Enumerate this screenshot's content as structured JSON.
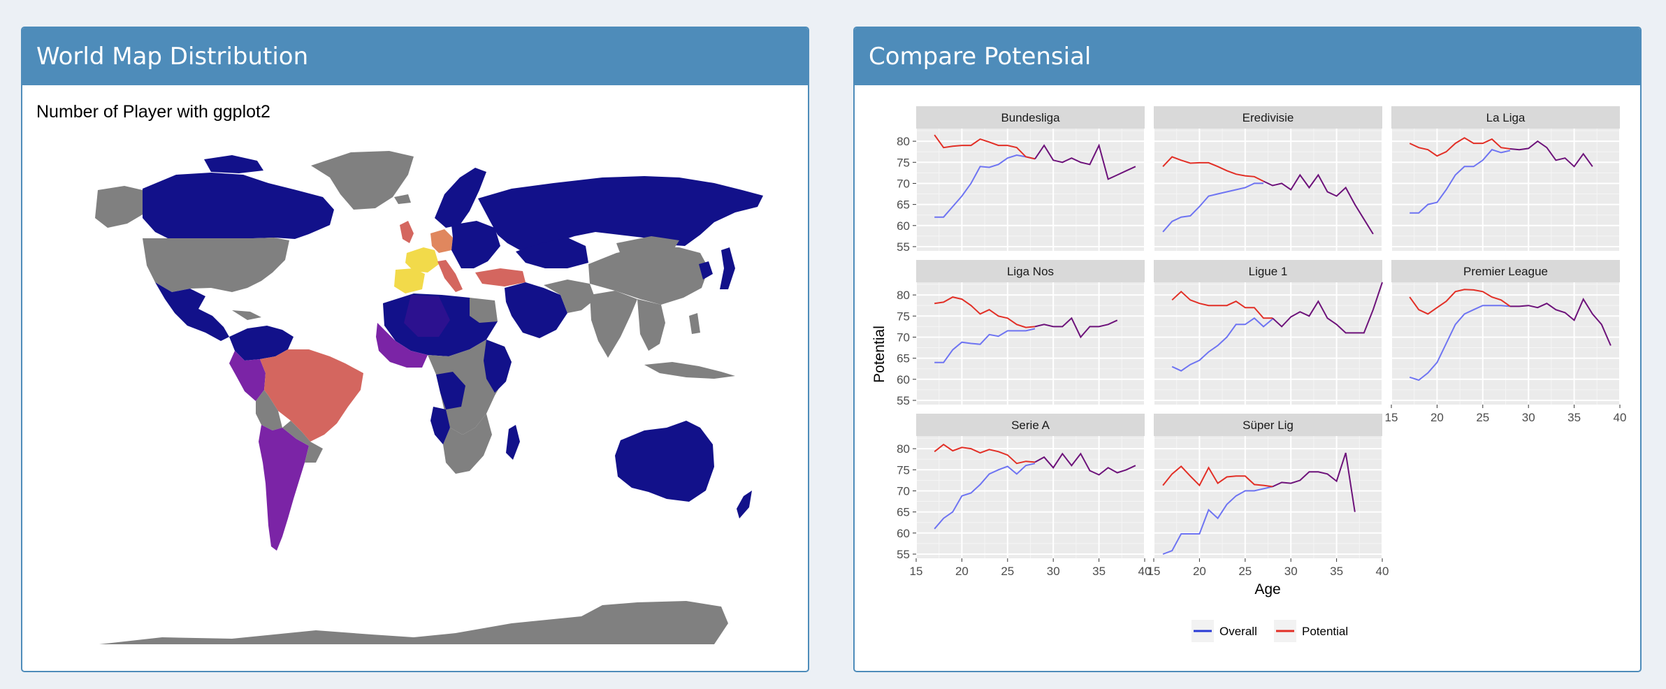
{
  "map_box": {
    "title": "World Map Distribution",
    "subtitle": "Number of Player with ggplot2",
    "colors": {
      "few": "#12118a",
      "mid": "#7b24a6",
      "more": "#d4665f",
      "many": "#f2da4a",
      "none": "#808080"
    }
  },
  "compare_box": {
    "title": "Compare Potensial"
  },
  "chart_data": {
    "type": "line",
    "xlabel": "Age",
    "ylabel": "Potential",
    "xlim": [
      15,
      40
    ],
    "ylim": [
      54,
      83
    ],
    "x_ticks": [
      15,
      20,
      25,
      30,
      35,
      40
    ],
    "y_ticks": [
      55,
      60,
      65,
      70,
      75,
      80
    ],
    "legend": [
      "Overall",
      "Potential"
    ],
    "legend_position": "bottom",
    "colors": {
      "Overall": "#6e74f2",
      "Potential": "#e22f26",
      "merged": "#6d127a"
    },
    "panels": [
      {
        "name": "Bundesliga",
        "overall": [
          [
            17,
            62
          ],
          [
            18,
            62
          ],
          [
            19,
            64.5
          ],
          [
            20,
            67
          ],
          [
            21,
            70
          ],
          [
            22,
            74
          ],
          [
            23,
            73.8
          ],
          [
            24,
            74.5
          ],
          [
            25,
            76
          ],
          [
            26,
            76.7
          ],
          [
            27,
            76.3
          ],
          [
            28,
            75.8
          ]
        ],
        "potential": [
          [
            17,
            81.5
          ],
          [
            18,
            78.5
          ],
          [
            19,
            78.8
          ],
          [
            20,
            79
          ],
          [
            21,
            79
          ],
          [
            22,
            80.5
          ],
          [
            23,
            79.8
          ],
          [
            24,
            79
          ],
          [
            25,
            79
          ],
          [
            26,
            78.5
          ],
          [
            27,
            76.3
          ],
          [
            28,
            75.8
          ]
        ],
        "merged": [
          [
            28,
            75.8
          ],
          [
            29,
            79
          ],
          [
            30,
            75.5
          ],
          [
            31,
            75
          ],
          [
            32,
            76
          ],
          [
            33,
            75
          ],
          [
            34,
            74.5
          ],
          [
            35,
            79
          ],
          [
            36,
            71
          ],
          [
            37,
            72
          ],
          [
            38,
            73
          ],
          [
            39,
            74
          ]
        ]
      },
      {
        "name": "Eredivisie",
        "overall": [
          [
            16,
            58.5
          ],
          [
            17,
            61
          ],
          [
            18,
            62
          ],
          [
            19,
            62.3
          ],
          [
            20,
            64.5
          ],
          [
            21,
            67
          ],
          [
            22,
            67.5
          ],
          [
            23,
            68
          ],
          [
            24,
            68.5
          ],
          [
            25,
            69
          ],
          [
            26,
            70
          ],
          [
            27,
            70
          ]
        ],
        "potential": [
          [
            16,
            74
          ],
          [
            17,
            76.3
          ],
          [
            18,
            75.5
          ],
          [
            19,
            74.8
          ],
          [
            20,
            74.9
          ],
          [
            21,
            74.9
          ],
          [
            22,
            74
          ],
          [
            23,
            73
          ],
          [
            24,
            72.2
          ],
          [
            25,
            71.8
          ],
          [
            26,
            71.6
          ],
          [
            27,
            70.5
          ]
        ],
        "merged": [
          [
            27,
            70.5
          ],
          [
            28,
            69.5
          ],
          [
            29,
            70
          ],
          [
            30,
            68.5
          ],
          [
            31,
            72
          ],
          [
            32,
            69
          ],
          [
            33,
            72
          ],
          [
            34,
            68
          ],
          [
            35,
            67
          ],
          [
            36,
            69
          ],
          [
            37,
            65
          ],
          [
            38,
            61.5
          ],
          [
            39,
            58
          ]
        ]
      },
      {
        "name": "La Liga",
        "overall": [
          [
            17,
            63
          ],
          [
            18,
            63
          ],
          [
            19,
            65
          ],
          [
            20,
            65.5
          ],
          [
            21,
            68.5
          ],
          [
            22,
            72
          ],
          [
            23,
            74
          ],
          [
            24,
            74
          ],
          [
            25,
            75.5
          ],
          [
            26,
            78
          ],
          [
            27,
            77.3
          ],
          [
            28,
            77.8
          ]
        ],
        "potential": [
          [
            17,
            79.5
          ],
          [
            18,
            78.5
          ],
          [
            19,
            78
          ],
          [
            20,
            76.5
          ],
          [
            21,
            77.5
          ],
          [
            22,
            79.5
          ],
          [
            23,
            80.8
          ],
          [
            24,
            79.5
          ],
          [
            25,
            79.5
          ],
          [
            26,
            80.5
          ],
          [
            27,
            78.5
          ],
          [
            28,
            78.2
          ]
        ],
        "merged": [
          [
            28,
            78.2
          ],
          [
            29,
            78
          ],
          [
            30,
            78.3
          ],
          [
            31,
            80
          ],
          [
            32,
            78.5
          ],
          [
            33,
            75.5
          ],
          [
            34,
            76
          ],
          [
            35,
            74
          ],
          [
            36,
            77
          ],
          [
            37,
            74
          ]
        ]
      },
      {
        "name": "Liga Nos",
        "overall": [
          [
            17,
            64
          ],
          [
            18,
            64
          ],
          [
            19,
            67
          ],
          [
            20,
            68.8
          ],
          [
            21,
            68.5
          ],
          [
            22,
            68.3
          ],
          [
            23,
            70.6
          ],
          [
            24,
            70.2
          ],
          [
            25,
            71.5
          ],
          [
            26,
            71.5
          ],
          [
            27,
            71.5
          ],
          [
            28,
            72
          ]
        ],
        "potential": [
          [
            17,
            78
          ],
          [
            18,
            78.3
          ],
          [
            19,
            79.5
          ],
          [
            20,
            79
          ],
          [
            21,
            77.5
          ],
          [
            22,
            75.5
          ],
          [
            23,
            76.5
          ],
          [
            24,
            75
          ],
          [
            25,
            74.5
          ],
          [
            26,
            73
          ],
          [
            27,
            72.3
          ],
          [
            28,
            72.5
          ]
        ],
        "merged": [
          [
            28,
            72.5
          ],
          [
            29,
            73
          ],
          [
            30,
            72.5
          ],
          [
            31,
            72.5
          ],
          [
            32,
            74.5
          ],
          [
            33,
            70
          ],
          [
            34,
            72.5
          ],
          [
            35,
            72.5
          ],
          [
            36,
            73
          ],
          [
            37,
            74
          ]
        ]
      },
      {
        "name": "Ligue 1",
        "overall": [
          [
            17,
            63
          ],
          [
            18,
            62
          ],
          [
            19,
            63.5
          ],
          [
            20,
            64.5
          ],
          [
            21,
            66.5
          ],
          [
            22,
            68
          ],
          [
            23,
            70
          ],
          [
            24,
            73
          ],
          [
            25,
            73
          ],
          [
            26,
            74.5
          ],
          [
            27,
            72.5
          ],
          [
            28,
            74.3
          ]
        ],
        "potential": [
          [
            17,
            78.8
          ],
          [
            18,
            80.8
          ],
          [
            19,
            78.8
          ],
          [
            20,
            78
          ],
          [
            21,
            77.5
          ],
          [
            22,
            77.5
          ],
          [
            23,
            77.5
          ],
          [
            24,
            78.5
          ],
          [
            25,
            77
          ],
          [
            26,
            77
          ],
          [
            27,
            74.5
          ],
          [
            28,
            74.5
          ]
        ],
        "merged": [
          [
            28,
            74.5
          ],
          [
            29,
            72.5
          ],
          [
            30,
            74.8
          ],
          [
            31,
            76
          ],
          [
            32,
            75
          ],
          [
            33,
            78.5
          ],
          [
            34,
            74.5
          ],
          [
            35,
            73
          ],
          [
            36,
            71
          ],
          [
            37,
            71
          ],
          [
            38,
            71
          ],
          [
            39,
            76.5
          ],
          [
            40,
            83
          ]
        ]
      },
      {
        "name": "Premier League",
        "overall": [
          [
            17,
            60.5
          ],
          [
            18,
            59.8
          ],
          [
            19,
            61.5
          ],
          [
            20,
            64
          ],
          [
            21,
            68.5
          ],
          [
            22,
            73
          ],
          [
            23,
            75.5
          ],
          [
            24,
            76.5
          ],
          [
            25,
            77.5
          ],
          [
            26,
            77.5
          ],
          [
            27,
            77.5
          ],
          [
            28,
            77.3
          ]
        ],
        "potential": [
          [
            17,
            79.5
          ],
          [
            18,
            76.5
          ],
          [
            19,
            75.5
          ],
          [
            20,
            77
          ],
          [
            21,
            78.5
          ],
          [
            22,
            80.8
          ],
          [
            23,
            81.3
          ],
          [
            24,
            81.2
          ],
          [
            25,
            80.8
          ],
          [
            26,
            79.5
          ],
          [
            27,
            78.8
          ],
          [
            28,
            77.3
          ]
        ],
        "merged": [
          [
            28,
            77.3
          ],
          [
            29,
            77.3
          ],
          [
            30,
            77.5
          ],
          [
            31,
            77
          ],
          [
            32,
            78
          ],
          [
            33,
            76.5
          ],
          [
            34,
            75.8
          ],
          [
            35,
            74
          ],
          [
            36,
            79
          ],
          [
            37,
            75.5
          ],
          [
            38,
            73
          ],
          [
            39,
            68
          ]
        ]
      },
      {
        "name": "Serie A",
        "overall": [
          [
            17,
            61
          ],
          [
            18,
            63.5
          ],
          [
            19,
            65
          ],
          [
            20,
            68.8
          ],
          [
            21,
            69.5
          ],
          [
            22,
            71.5
          ],
          [
            23,
            74
          ],
          [
            24,
            75
          ],
          [
            25,
            75.8
          ],
          [
            26,
            74
          ],
          [
            27,
            76
          ],
          [
            28,
            76.5
          ]
        ],
        "potential": [
          [
            17,
            79.3
          ],
          [
            18,
            81
          ],
          [
            19,
            79.5
          ],
          [
            20,
            80.3
          ],
          [
            21,
            80
          ],
          [
            22,
            79
          ],
          [
            23,
            79.8
          ],
          [
            24,
            79.3
          ],
          [
            25,
            78.5
          ],
          [
            26,
            76.5
          ],
          [
            27,
            77
          ],
          [
            28,
            76.8
          ]
        ],
        "merged": [
          [
            28,
            76.8
          ],
          [
            29,
            78
          ],
          [
            30,
            75.5
          ],
          [
            31,
            78.8
          ],
          [
            32,
            76
          ],
          [
            33,
            78.8
          ],
          [
            34,
            74.8
          ],
          [
            35,
            73.8
          ],
          [
            36,
            75.5
          ],
          [
            37,
            74.3
          ],
          [
            38,
            75
          ],
          [
            39,
            76
          ]
        ]
      },
      {
        "name": "Süper Lig",
        "overall": [
          [
            16,
            55
          ],
          [
            17,
            55.8
          ],
          [
            18,
            59.8
          ],
          [
            19,
            59.8
          ],
          [
            20,
            59.8
          ],
          [
            21,
            65.5
          ],
          [
            22,
            63.5
          ],
          [
            23,
            66.8
          ],
          [
            24,
            68.8
          ],
          [
            25,
            70
          ],
          [
            26,
            70
          ],
          [
            27,
            70.5
          ],
          [
            28,
            71
          ]
        ],
        "potential": [
          [
            16,
            71.3
          ],
          [
            17,
            74
          ],
          [
            18,
            75.8
          ],
          [
            19,
            73.5
          ],
          [
            20,
            71.3
          ],
          [
            21,
            75.5
          ],
          [
            22,
            71.8
          ],
          [
            23,
            73.3
          ],
          [
            24,
            73.5
          ],
          [
            25,
            73.5
          ],
          [
            26,
            71.5
          ],
          [
            27,
            71.3
          ],
          [
            28,
            71
          ]
        ],
        "merged": [
          [
            28,
            71
          ],
          [
            29,
            72
          ],
          [
            30,
            71.8
          ],
          [
            31,
            72.5
          ],
          [
            32,
            74.5
          ],
          [
            33,
            74.5
          ],
          [
            34,
            74
          ],
          [
            35,
            72.3
          ],
          [
            36,
            79
          ],
          [
            37,
            65
          ]
        ]
      }
    ]
  }
}
